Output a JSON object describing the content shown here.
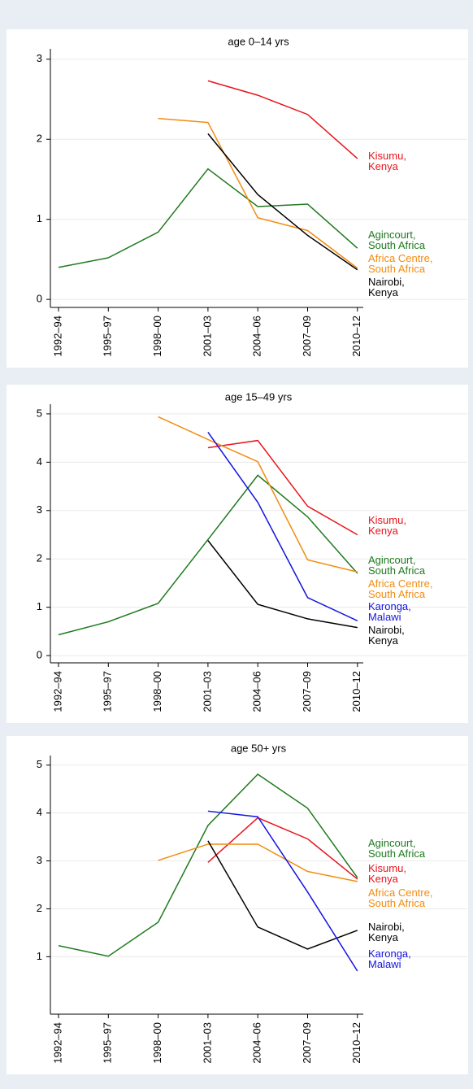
{
  "chart_data": [
    {
      "type": "line",
      "title": "age 0–14 yrs",
      "categories": [
        "1992–94",
        "1995–97",
        "1998–00",
        "2001–03",
        "2004–06",
        "2007–09",
        "2010–12"
      ],
      "ylim": [
        -0.1,
        3.13
      ],
      "yticks": [
        0,
        1,
        2,
        3
      ],
      "grid": true,
      "series": [
        {
          "name": "Kisumu,\nKenya",
          "color": "#e8141c",
          "values": [
            null,
            null,
            null,
            2.73,
            2.55,
            2.31,
            1.76
          ]
        },
        {
          "name": "Agincourt,\nSouth Africa",
          "color": "#1f7a1f",
          "values": [
            0.4,
            0.52,
            0.84,
            1.63,
            1.16,
            1.19,
            0.64
          ]
        },
        {
          "name": "Africa Centre,\nSouth Africa",
          "color": "#f28c0f",
          "values": [
            null,
            null,
            2.26,
            2.21,
            1.02,
            0.86,
            0.39
          ]
        },
        {
          "name": "Nairobi,\nKenya",
          "color": "#000000",
          "values": [
            null,
            null,
            null,
            2.07,
            1.31,
            0.8,
            0.37
          ]
        }
      ]
    },
    {
      "type": "line",
      "title": "age 15–49 yrs",
      "categories": [
        "1992–94",
        "1995–97",
        "1998–00",
        "2001–03",
        "2004–06",
        "2007–09",
        "2010–12"
      ],
      "ylim": [
        -0.15,
        5.2
      ],
      "yticks": [
        0,
        1,
        2,
        3,
        4,
        5
      ],
      "grid": true,
      "series": [
        {
          "name": "Kisumu,\nKenya",
          "color": "#e8141c",
          "values": [
            null,
            null,
            null,
            4.3,
            4.45,
            3.09,
            2.5
          ]
        },
        {
          "name": "Agincourt,\nSouth Africa",
          "color": "#1f7a1f",
          "values": [
            0.43,
            0.7,
            1.08,
            2.4,
            3.73,
            2.87,
            1.7
          ]
        },
        {
          "name": "Africa Centre,\nSouth Africa",
          "color": "#f28c0f",
          "values": [
            null,
            null,
            4.94,
            4.47,
            4.01,
            1.98,
            1.73
          ]
        },
        {
          "name": "Karonga,\nMalawi",
          "color": "#1414e0",
          "values": [
            null,
            null,
            null,
            4.62,
            3.17,
            1.2,
            0.72
          ]
        },
        {
          "name": "Nairobi,\nKenya",
          "color": "#000000",
          "values": [
            null,
            null,
            null,
            2.38,
            1.06,
            0.76,
            0.58
          ]
        }
      ]
    },
    {
      "type": "line",
      "title": "age 50+ yrs",
      "categories": [
        "1992–94",
        "1995–97",
        "1998–00",
        "2001–03",
        "2004–06",
        "2007–09",
        "2010–12"
      ],
      "ylim": [
        -0.2,
        5.2
      ],
      "yticks": [
        1,
        2,
        3,
        4,
        5
      ],
      "grid": true,
      "series": [
        {
          "name": "Agincourt,\nSouth Africa",
          "color": "#1f7a1f",
          "values": [
            1.23,
            1.01,
            1.72,
            3.74,
            4.81,
            4.1,
            2.65
          ]
        },
        {
          "name": "Kisumu,\nKenya",
          "color": "#e8141c",
          "values": [
            null,
            null,
            null,
            2.97,
            3.9,
            3.46,
            2.62
          ]
        },
        {
          "name": "Africa Centre,\nSouth Africa",
          "color": "#f28c0f",
          "values": [
            null,
            null,
            3.01,
            3.35,
            3.35,
            2.78,
            2.57
          ]
        },
        {
          "name": "Nairobi,\nKenya",
          "color": "#000000",
          "values": [
            null,
            null,
            null,
            3.42,
            1.62,
            1.16,
            1.55
          ]
        },
        {
          "name": "Karonga,\nMalawi",
          "color": "#1414e0",
          "values": [
            null,
            null,
            null,
            4.04,
            3.92,
            2.35,
            0.7
          ]
        }
      ]
    }
  ]
}
